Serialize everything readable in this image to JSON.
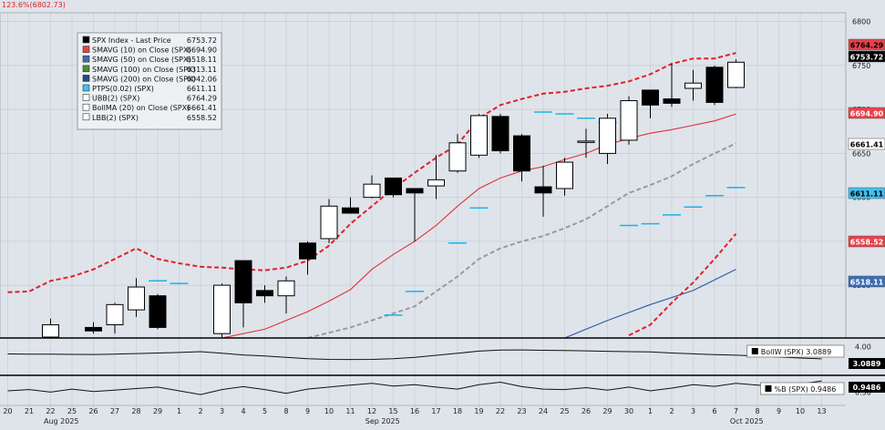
{
  "top_annotation": "123.6%(6802.73)",
  "colors": {
    "background": "#dfe4ea",
    "grid": "#c4cbd3",
    "candle": "#000000",
    "sma10": "#e0303a",
    "sma50": "#9a9a9a",
    "sma200": "#2a5aa8",
    "bollinger_band": "#e0202a",
    "ptps": "#19b5e6",
    "ptps_blue": "#33a9e1"
  },
  "legend": [
    {
      "name": "SPX Index - Last Price",
      "value": "6753.72",
      "swatch": "#000000",
      "icon": "black-square"
    },
    {
      "name": "SMAVG (10)  on Close (SPX)",
      "value": "6694.90",
      "swatch": "#e8414a",
      "icon": "red-square"
    },
    {
      "name": "SMAVG (50)  on Close (SPX)",
      "value": "6518.11",
      "swatch": "#3d6eb5",
      "icon": "blue-square"
    },
    {
      "name": "SMAVG (100)  on Close (SPX)",
      "value": "6313.11",
      "swatch": "#4d8c2f",
      "icon": "green-square"
    },
    {
      "name": "SMAVG (200)  on Close (SPX)",
      "value": "6042.06",
      "swatch": "#1f4f7a",
      "icon": "dark-blue-square"
    },
    {
      "name": "PTPS(0.02) (SPX)",
      "value": "6611.11",
      "swatch": "#41c0f0",
      "icon": "cyan-square"
    },
    {
      "name": "UBB(2) (SPX)",
      "value": "6764.29",
      "swatch": "none",
      "icon": "empty-square"
    },
    {
      "name": "BollMA (20)  on Close (SPX)",
      "value": "6661.41",
      "swatch": "none",
      "icon": "empty-square"
    },
    {
      "name": "LBB(2) (SPX)",
      "value": "6558.52",
      "swatch": "none",
      "icon": "empty-square"
    }
  ],
  "right_tags": [
    {
      "value": "6764.29",
      "bg": "#e8414a",
      "fg": "#000000"
    },
    {
      "value": "6753.72",
      "bg": "#000000",
      "fg": "#ffffff"
    },
    {
      "value": "6694.90",
      "bg": "#e8414a",
      "fg": "#ffffff"
    },
    {
      "value": "6661.41",
      "bg": "#ffffff",
      "fg": "#000000"
    },
    {
      "value": "6611.11",
      "bg": "#41c0f0",
      "fg": "#000000"
    },
    {
      "value": "6558.52",
      "bg": "#e8414a",
      "fg": "#ffffff"
    },
    {
      "value": "6518.11",
      "bg": "#3d6eb5",
      "fg": "#ffffff"
    }
  ],
  "bollw": {
    "label": "BollW (SPX) 3.0889",
    "tag": "3.0889",
    "axis_ticks": [
      "4.00"
    ],
    "ylim": [
      2.0,
      4.5
    ]
  },
  "pctb": {
    "label": "%B (SPX) 0.9486",
    "tag": "0.9486",
    "axis_ticks": [
      "0.50"
    ],
    "ylim": [
      0,
      1.1
    ]
  },
  "chart_data": {
    "type": "candlestick",
    "title": "",
    "ylim": [
      6440,
      6810
    ],
    "y_ticks": [
      6500,
      6550,
      6600,
      6650,
      6700,
      6750,
      6800
    ],
    "y_tick_labels": [
      "6500",
      "6550",
      "6600",
      "6650",
      "6700",
      "6750",
      "6800"
    ],
    "x_day_labels": [
      "20",
      "21",
      "22",
      "25",
      "26",
      "27",
      "28",
      "29",
      "1",
      "2",
      "3",
      "4",
      "5",
      "8",
      "9",
      "10",
      "11",
      "12",
      "15",
      "16",
      "17",
      "18",
      "19",
      "22",
      "23",
      "24",
      "25",
      "26",
      "29",
      "30",
      "1",
      "2",
      "3",
      "6",
      "7",
      "8",
      "9",
      "10",
      "13"
    ],
    "x_month_labels": [
      {
        "label": "Aug 2025",
        "index": 2.5
      },
      {
        "label": "Sep 2025",
        "index": 17.5
      },
      {
        "label": "Oct 2025",
        "index": 34.5
      }
    ],
    "candles": [
      {
        "x": 2,
        "o": 6440,
        "h": 6462,
        "l": 6440,
        "c": 6455
      },
      {
        "x": 4,
        "o": 6452,
        "h": 6458,
        "l": 6445,
        "c": 6448
      },
      {
        "x": 5,
        "o": 6455,
        "h": 6480,
        "l": 6445,
        "c": 6478
      },
      {
        "x": 6,
        "o": 6472,
        "h": 6508,
        "l": 6464,
        "c": 6498
      },
      {
        "x": 7,
        "o": 6488,
        "h": 6490,
        "l": 6450,
        "c": 6452
      },
      {
        "x": 10,
        "o": 6445,
        "h": 6502,
        "l": 6440,
        "c": 6500
      },
      {
        "x": 11,
        "o": 6528,
        "h": 6528,
        "l": 6452,
        "c": 6480
      },
      {
        "x": 12,
        "o": 6494,
        "h": 6500,
        "l": 6480,
        "c": 6488
      },
      {
        "x": 13,
        "o": 6488,
        "h": 6510,
        "l": 6468,
        "c": 6505
      },
      {
        "x": 14,
        "o": 6548,
        "h": 6550,
        "l": 6512,
        "c": 6530
      },
      {
        "x": 15,
        "o": 6553,
        "h": 6598,
        "l": 6548,
        "c": 6590
      },
      {
        "x": 16,
        "o": 6588,
        "h": 6600,
        "l": 6585,
        "c": 6582
      },
      {
        "x": 17,
        "o": 6600,
        "h": 6625,
        "l": 6599,
        "c": 6615
      },
      {
        "x": 18,
        "o": 6622,
        "h": 6622,
        "l": 6600,
        "c": 6603
      },
      {
        "x": 19,
        "o": 6610,
        "h": 6610,
        "l": 6550,
        "c": 6605
      },
      {
        "x": 20,
        "o": 6613,
        "h": 6648,
        "l": 6598,
        "c": 6620
      },
      {
        "x": 21,
        "o": 6630,
        "h": 6672,
        "l": 6628,
        "c": 6662
      },
      {
        "x": 22,
        "o": 6648,
        "h": 6695,
        "l": 6645,
        "c": 6693
      },
      {
        "x": 23,
        "o": 6692,
        "h": 6695,
        "l": 6650,
        "c": 6653
      },
      {
        "x": 24,
        "o": 6670,
        "h": 6672,
        "l": 6618,
        "c": 6630
      },
      {
        "x": 25,
        "o": 6612,
        "h": 6636,
        "l": 6578,
        "c": 6605
      },
      {
        "x": 26,
        "o": 6610,
        "h": 6645,
        "l": 6602,
        "c": 6640
      },
      {
        "x": 27,
        "o": 6664,
        "h": 6678,
        "l": 6645,
        "c": 6664
      },
      {
        "x": 28,
        "o": 6650,
        "h": 6695,
        "l": 6638,
        "c": 6690
      },
      {
        "x": 29,
        "o": 6665,
        "h": 6715,
        "l": 6660,
        "c": 6710
      },
      {
        "x": 30,
        "o": 6722,
        "h": 6722,
        "l": 6690,
        "c": 6705
      },
      {
        "x": 31,
        "o": 6712,
        "h": 6752,
        "l": 6703,
        "c": 6707
      },
      {
        "x": 32,
        "o": 6724,
        "h": 6745,
        "l": 6710,
        "c": 6730
      },
      {
        "x": 33,
        "o": 6748,
        "h": 6750,
        "l": 6705,
        "c": 6708
      },
      {
        "x": 34,
        "o": 6725,
        "h": 6757,
        "l": 6724,
        "c": 6753.72
      }
    ],
    "series": [
      {
        "type": "line",
        "style": "dashed",
        "color": "#e0202a",
        "points": [
          [
            0,
            6492
          ],
          [
            1,
            6493
          ],
          [
            2,
            6505
          ],
          [
            3,
            6510
          ],
          [
            4,
            6518
          ],
          [
            5,
            6530
          ],
          [
            6,
            6542
          ],
          [
            7,
            6530
          ],
          [
            8,
            6525
          ],
          [
            9,
            6521
          ],
          [
            10,
            6520
          ],
          [
            11,
            6518
          ],
          [
            12,
            6517
          ],
          [
            13,
            6520
          ],
          [
            14,
            6528
          ],
          [
            15,
            6545
          ],
          [
            16,
            6570
          ],
          [
            17,
            6590
          ],
          [
            18,
            6610
          ],
          [
            19,
            6628
          ],
          [
            20,
            6645
          ],
          [
            21,
            6660
          ],
          [
            22,
            6690
          ],
          [
            23,
            6705
          ],
          [
            24,
            6712
          ],
          [
            25,
            6718
          ],
          [
            26,
            6720
          ],
          [
            27,
            6724
          ],
          [
            28,
            6727
          ],
          [
            29,
            6732
          ],
          [
            30,
            6740
          ],
          [
            31,
            6752
          ],
          [
            32,
            6758
          ],
          [
            33,
            6758
          ],
          [
            34,
            6764.29
          ]
        ]
      },
      {
        "type": "line",
        "style": "solid",
        "color": "#e0303a",
        "points": [
          [
            10,
            6440
          ],
          [
            12,
            6450
          ],
          [
            14,
            6470
          ],
          [
            15,
            6482
          ],
          [
            16,
            6495
          ],
          [
            17,
            6518
          ],
          [
            18,
            6535
          ],
          [
            19,
            6550
          ],
          [
            20,
            6568
          ],
          [
            21,
            6590
          ],
          [
            22,
            6610
          ],
          [
            23,
            6622
          ],
          [
            24,
            6630
          ],
          [
            25,
            6635
          ],
          [
            26,
            6643
          ],
          [
            27,
            6650
          ],
          [
            28,
            6660
          ],
          [
            29,
            6667
          ],
          [
            30,
            6673
          ],
          [
            31,
            6677
          ],
          [
            32,
            6682
          ],
          [
            33,
            6687
          ],
          [
            34,
            6694.9
          ]
        ]
      },
      {
        "type": "line",
        "style": "dashed",
        "color": "#9a9a9a",
        "points": [
          [
            14,
            6440
          ],
          [
            16,
            6452
          ],
          [
            18,
            6468
          ],
          [
            19,
            6476
          ],
          [
            20,
            6493
          ],
          [
            21,
            6510
          ],
          [
            22,
            6530
          ],
          [
            23,
            6542
          ],
          [
            24,
            6550
          ],
          [
            25,
            6556
          ],
          [
            26,
            6565
          ],
          [
            27,
            6575
          ],
          [
            28,
            6590
          ],
          [
            29,
            6605
          ],
          [
            30,
            6614
          ],
          [
            31,
            6624
          ],
          [
            32,
            6638
          ],
          [
            33,
            6650
          ],
          [
            34,
            6661.41
          ]
        ]
      },
      {
        "type": "line",
        "style": "solid",
        "color": "#2a5aa8",
        "points": [
          [
            26,
            6440
          ],
          [
            28,
            6460
          ],
          [
            30,
            6478
          ],
          [
            32,
            6494
          ],
          [
            34,
            6518.11
          ]
        ]
      },
      {
        "type": "line",
        "style": "dashed",
        "color": "#e0202a",
        "points": [
          [
            29,
            6443
          ],
          [
            30,
            6455
          ],
          [
            31,
            6480
          ],
          [
            32,
            6503
          ],
          [
            33,
            6530
          ],
          [
            34,
            6558.52
          ]
        ]
      },
      {
        "type": "points",
        "style": "ptps",
        "color": "#19b5e6",
        "points": [
          [
            7,
            6505
          ],
          [
            8,
            6502
          ],
          [
            18,
            6466
          ],
          [
            19,
            6493
          ],
          [
            21,
            6548
          ],
          [
            22,
            6588
          ],
          [
            25,
            6697
          ],
          [
            26,
            6695
          ],
          [
            27,
            6690
          ],
          [
            28,
            6685
          ],
          [
            29,
            6568
          ],
          [
            30,
            6570
          ],
          [
            31,
            6580
          ],
          [
            32,
            6589
          ],
          [
            33,
            6602
          ],
          [
            34,
            6611.11
          ]
        ]
      }
    ],
    "bollw_series": [
      3.45,
      3.44,
      3.43,
      3.42,
      3.41,
      3.44,
      3.48,
      3.52,
      3.56,
      3.62,
      3.5,
      3.38,
      3.3,
      3.2,
      3.1,
      3.05,
      3.04,
      3.05,
      3.1,
      3.2,
      3.35,
      3.5,
      3.66,
      3.74,
      3.75,
      3.72,
      3.7,
      3.68,
      3.65,
      3.62,
      3.6,
      3.52,
      3.46,
      3.4,
      3.36,
      3.3,
      3.22,
      3.15,
      3.09
    ],
    "pctb_series": [
      0.55,
      0.6,
      0.5,
      0.62,
      0.52,
      0.58,
      0.64,
      0.7,
      0.55,
      0.4,
      0.6,
      0.72,
      0.6,
      0.45,
      0.62,
      0.7,
      0.78,
      0.85,
      0.74,
      0.8,
      0.7,
      0.62,
      0.8,
      0.9,
      0.72,
      0.62,
      0.6,
      0.68,
      0.58,
      0.7,
      0.55,
      0.66,
      0.8,
      0.73,
      0.85,
      0.78,
      0.72,
      0.82,
      0.9486
    ]
  }
}
